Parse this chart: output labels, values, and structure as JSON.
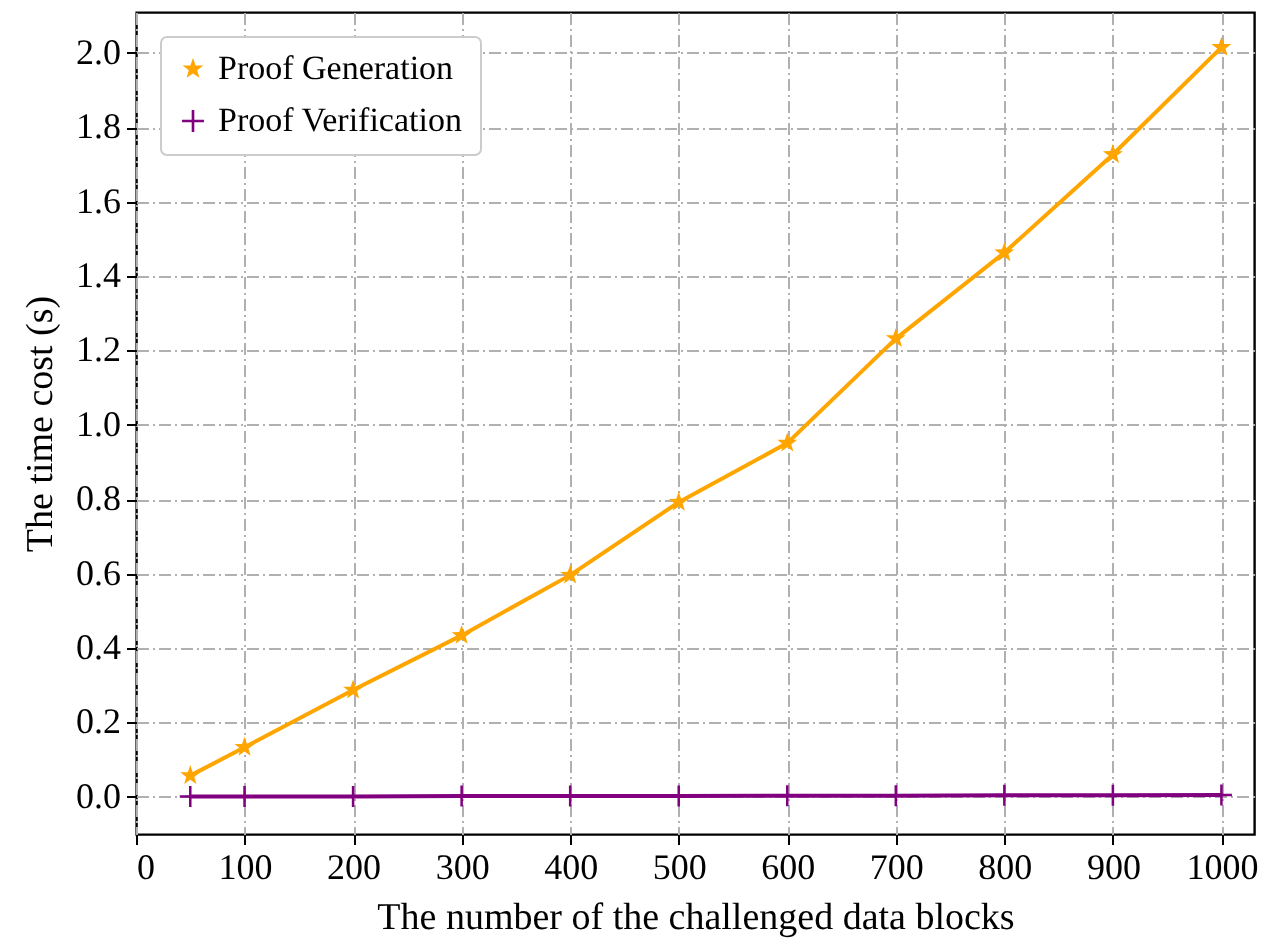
{
  "chart_data": {
    "type": "line",
    "xlabel": "The number of the challenged data blocks",
    "ylabel": "The time cost (s)",
    "x": [
      50,
      100,
      200,
      300,
      400,
      500,
      600,
      700,
      800,
      900,
      1000
    ],
    "series": [
      {
        "name": "Proof Generation",
        "color": "#ffa500",
        "marker": "star",
        "values": [
          0.057,
          0.133,
          0.287,
          0.434,
          0.596,
          0.792,
          0.951,
          1.232,
          1.463,
          1.727,
          2.015
        ]
      },
      {
        "name": "Proof Verification",
        "color": "#800080",
        "marker": "cross",
        "values": [
          0.001,
          0.001,
          0.001,
          0.002,
          0.002,
          0.002,
          0.003,
          0.003,
          0.004,
          0.004,
          0.005
        ]
      }
    ],
    "xlim": [
      0,
      1030
    ],
    "xticks": [
      0,
      100,
      200,
      300,
      400,
      500,
      600,
      700,
      800,
      900,
      1000
    ],
    "ylim": [
      -0.1,
      2.11
    ],
    "yticks": [
      {
        "value": 0,
        "label": "0.0"
      },
      {
        "value": 0.2,
        "label": "0.2"
      },
      {
        "value": 0.4,
        "label": "0.4"
      },
      {
        "value": 0.6,
        "label": "0.6"
      },
      {
        "value": 0.8,
        "label": "0.8"
      },
      {
        "value": 1,
        "label": "1.0"
      },
      {
        "value": 1.2,
        "label": "1.2"
      },
      {
        "value": 1.4,
        "label": "1.4"
      },
      {
        "value": 1.6,
        "label": "1.6"
      },
      {
        "value": 1.8,
        "label": "1.8"
      },
      {
        "value": 2,
        "label": "2.0"
      }
    ],
    "grid": true,
    "legend": "top left",
    "line_style": "solid"
  }
}
